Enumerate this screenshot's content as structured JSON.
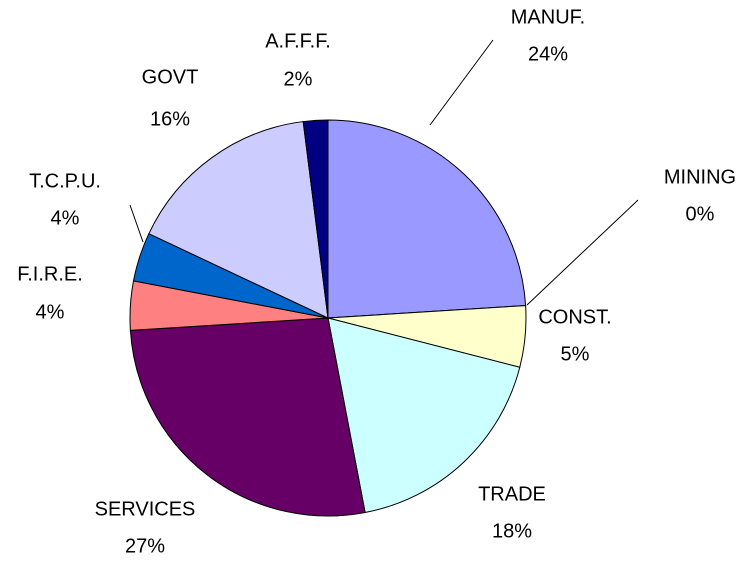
{
  "chart_data": {
    "type": "pie",
    "categories": [
      "MANUF.",
      "MINING",
      "CONST.",
      "TRADE",
      "SERVICES",
      "F.I.R.E.",
      "T.C.P.U.",
      "GOVT",
      "A.F.F.F."
    ],
    "values": [
      24,
      0,
      5,
      18,
      27,
      4,
      4,
      16,
      2
    ],
    "value_labels": [
      "24%",
      "0%",
      "5%",
      "18%",
      "27%",
      "4%",
      "4%",
      "16%",
      "2%"
    ],
    "colors": [
      "#9999ff",
      "#993366",
      "#ffffcc",
      "#ccffff",
      "#660066",
      "#ff8080",
      "#0066cc",
      "#ccccff",
      "#000080"
    ]
  }
}
